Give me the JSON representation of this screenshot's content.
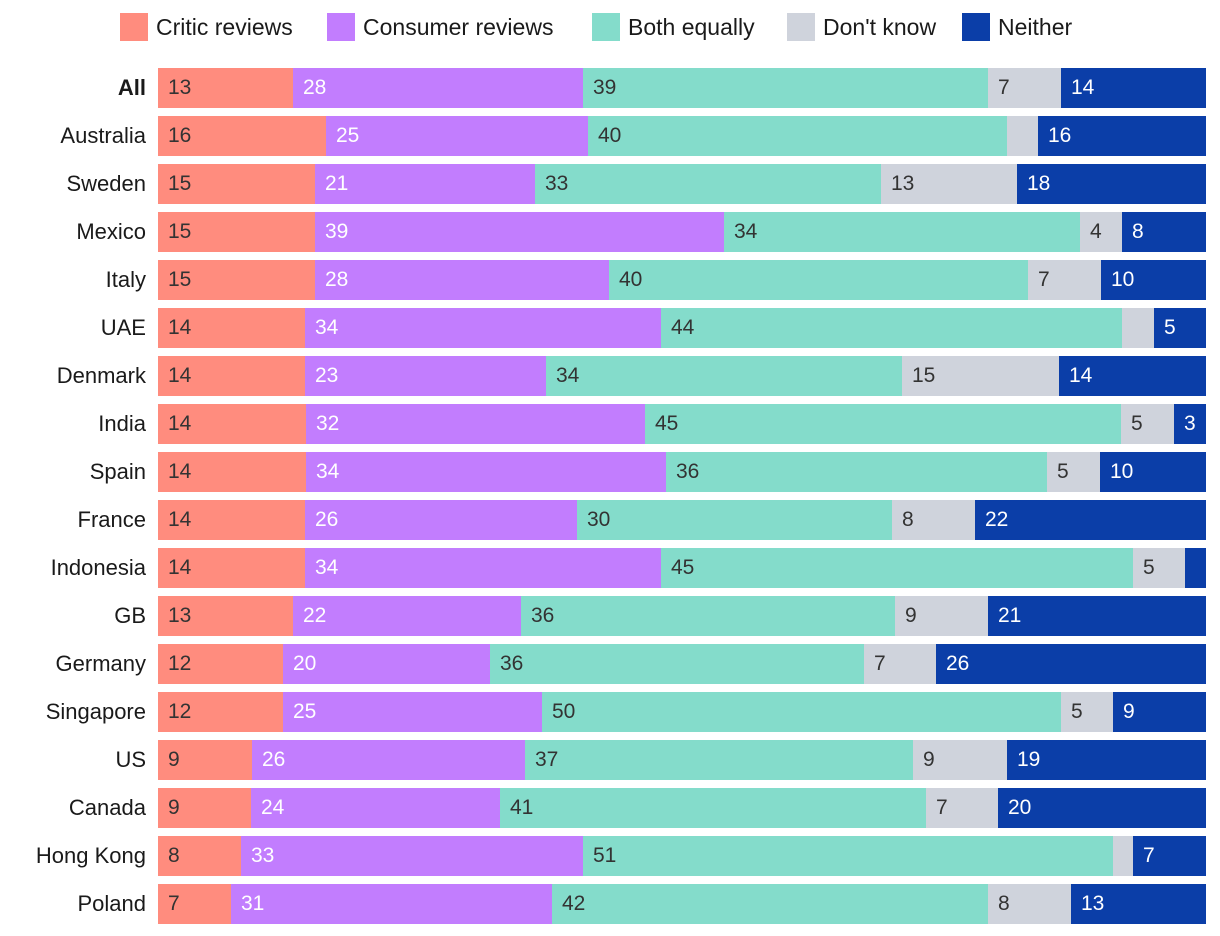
{
  "chart_data": {
    "type": "bar",
    "orientation": "horizontal",
    "stacked": true,
    "normalized": true,
    "title": "",
    "xlabel": "",
    "ylabel": "",
    "legend_position": "top",
    "categories": [
      "All",
      "Australia",
      "Sweden",
      "Mexico",
      "Italy",
      "UAE",
      "Denmark",
      "India",
      "Spain",
      "France",
      "Indonesia",
      "GB",
      "Germany",
      "Singapore",
      "US",
      "Canada",
      "Hong Kong",
      "Poland"
    ],
    "bold_categories": [
      "All"
    ],
    "series": [
      {
        "name": "Critic reviews",
        "color": "#ff8c7e",
        "label_color": "#333333",
        "values": [
          13,
          16,
          15,
          15,
          15,
          14,
          14,
          14,
          14,
          14,
          14,
          13,
          12,
          12,
          9,
          9,
          8,
          7
        ],
        "labels": [
          "13",
          "16",
          "15",
          "15",
          "15",
          "14",
          "14",
          "14",
          "14",
          "14",
          "14",
          "13",
          "12",
          "12",
          "9",
          "9",
          "8",
          "7"
        ]
      },
      {
        "name": "Consumer reviews",
        "color": "#c27dfe",
        "label_color": "#ffffff",
        "values": [
          28,
          25,
          21,
          39,
          28,
          34,
          23,
          32,
          34,
          26,
          34,
          22,
          20,
          25,
          26,
          24,
          33,
          31
        ],
        "labels": [
          "28",
          "25",
          "21",
          "39",
          "28",
          "34",
          "23",
          "32",
          "34",
          "26",
          "34",
          "22",
          "20",
          "25",
          "26",
          "24",
          "33",
          "31"
        ]
      },
      {
        "name": "Both equally",
        "color": "#84dccb",
        "label_color": "#333333",
        "values": [
          39,
          40,
          33,
          34,
          40,
          44,
          34,
          45,
          36,
          30,
          45,
          36,
          36,
          50,
          37,
          41,
          51,
          42
        ],
        "labels": [
          "39",
          "40",
          "33",
          "34",
          "40",
          "44",
          "34",
          "45",
          "36",
          "30",
          "45",
          "36",
          "36",
          "50",
          "37",
          "41",
          "51",
          "42"
        ]
      },
      {
        "name": "Don't know",
        "color": "#cfd3dc",
        "label_color": "#333333",
        "values": [
          7,
          3,
          13,
          4,
          7,
          3,
          15,
          5,
          5,
          8,
          5,
          9,
          7,
          5,
          9,
          7,
          2,
          8
        ],
        "labels": [
          "7",
          "",
          "13",
          "4",
          "7",
          "",
          "15",
          "5",
          "5",
          "8",
          "5",
          "9",
          "7",
          "5",
          "9",
          "7",
          "",
          "8"
        ]
      },
      {
        "name": "Neither",
        "color": "#0b3ea8",
        "label_color": "#ffffff",
        "values": [
          14,
          16,
          18,
          8,
          10,
          5,
          14,
          3,
          10,
          22,
          2,
          21,
          26,
          9,
          19,
          20,
          7,
          13
        ],
        "labels": [
          "14",
          "16",
          "18",
          "8",
          "10",
          "5",
          "14",
          "3",
          "10",
          "22",
          "",
          "21",
          "26",
          "9",
          "19",
          "20",
          "7",
          "13"
        ]
      }
    ]
  }
}
